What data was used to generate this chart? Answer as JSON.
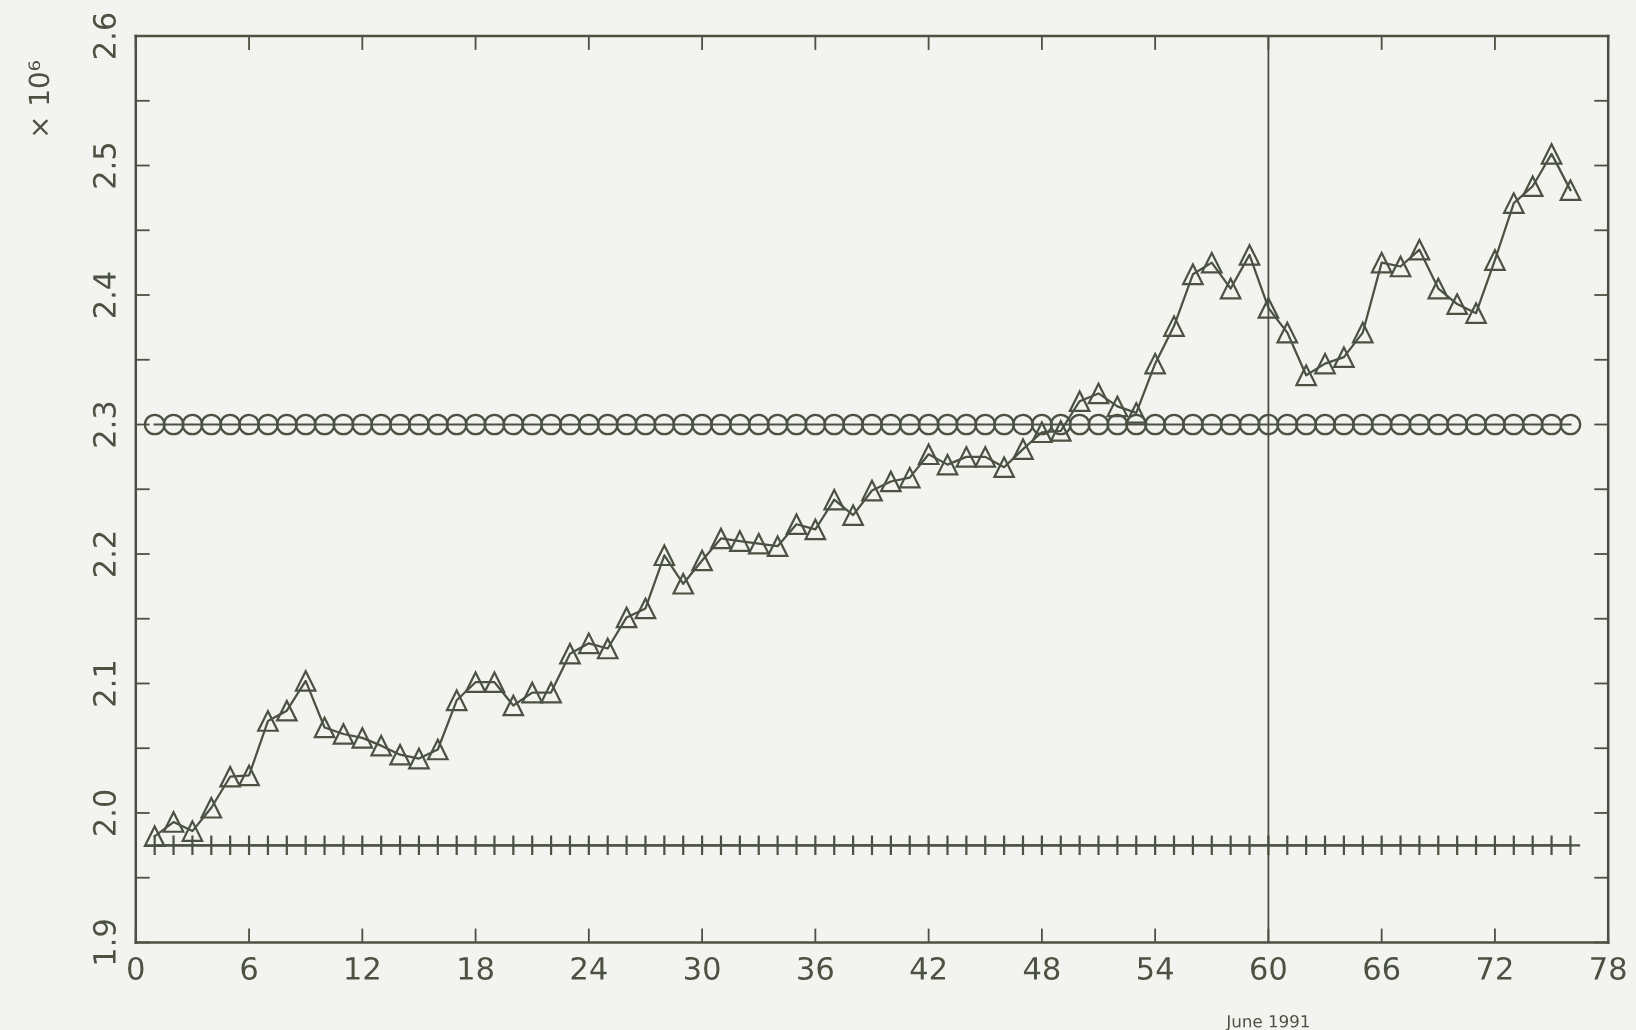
{
  "chart_data": {
    "type": "line",
    "ylabel": "× 10⁶",
    "x": [
      1,
      2,
      3,
      4,
      5,
      6,
      7,
      8,
      9,
      10,
      11,
      12,
      13,
      14,
      15,
      16,
      17,
      18,
      19,
      20,
      21,
      22,
      23,
      24,
      25,
      26,
      27,
      28,
      29,
      30,
      31,
      32,
      33,
      34,
      35,
      36,
      37,
      38,
      39,
      40,
      41,
      42,
      43,
      44,
      45,
      46,
      47,
      48,
      49,
      50,
      51,
      52,
      53,
      54,
      55,
      56,
      57,
      58,
      59,
      60,
      61,
      62,
      63,
      64,
      65,
      66,
      67,
      68,
      69,
      70,
      71,
      72,
      73,
      74,
      75,
      76
    ],
    "series": [
      {
        "color": "#4b5143",
        "marker": "triangle",
        "values": [
          1.982,
          1.993,
          1.986,
          2.004,
          2.028,
          2.029,
          2.071,
          2.079,
          2.102,
          2.066,
          2.061,
          2.058,
          2.052,
          2.045,
          2.042,
          2.049,
          2.087,
          2.101,
          2.101,
          2.083,
          2.093,
          2.093,
          2.123,
          2.131,
          2.127,
          2.151,
          2.158,
          2.199,
          2.177,
          2.195,
          2.212,
          2.21,
          2.208,
          2.206,
          2.223,
          2.219,
          2.242,
          2.23,
          2.249,
          2.256,
          2.259,
          2.277,
          2.269,
          2.275,
          2.275,
          2.267,
          2.281,
          2.294,
          2.295,
          2.318,
          2.324,
          2.314,
          2.309,
          2.347,
          2.376,
          2.416,
          2.425,
          2.405,
          2.431,
          2.39,
          2.371,
          2.338,
          2.347,
          2.352,
          2.371,
          2.425,
          2.422,
          2.435,
          2.405,
          2.393,
          2.386,
          2.427,
          2.471,
          2.484,
          2.509,
          2.481
        ]
      },
      {
        "color": "#4b5143",
        "marker": "circle",
        "values": [
          2.3,
          2.3,
          2.3,
          2.3,
          2.3,
          2.3,
          2.3,
          2.3,
          2.3,
          2.3,
          2.3,
          2.3,
          2.3,
          2.3,
          2.3,
          2.3,
          2.3,
          2.3,
          2.3,
          2.3,
          2.3,
          2.3,
          2.3,
          2.3,
          2.3,
          2.3,
          2.3,
          2.3,
          2.3,
          2.3,
          2.3,
          2.3,
          2.3,
          2.3,
          2.3,
          2.3,
          2.3,
          2.3,
          2.3,
          2.3,
          2.3,
          2.3,
          2.3,
          2.3,
          2.3,
          2.3,
          2.3,
          2.3,
          2.3,
          2.3,
          2.3,
          2.3,
          2.3,
          2.3,
          2.3,
          2.3,
          2.3,
          2.3,
          2.3,
          2.3,
          2.3,
          2.3,
          2.3,
          2.3,
          2.3,
          2.3,
          2.3,
          2.3,
          2.3,
          2.3,
          2.3,
          2.3,
          2.3,
          2.3,
          2.3,
          2.3
        ]
      },
      {
        "color": "#4b5143",
        "marker": "cross",
        "values": [
          1.975,
          1.975,
          1.975,
          1.975,
          1.975,
          1.975,
          1.975,
          1.975,
          1.975,
          1.975,
          1.975,
          1.975,
          1.975,
          1.975,
          1.975,
          1.975,
          1.975,
          1.975,
          1.975,
          1.975,
          1.975,
          1.975,
          1.975,
          1.975,
          1.975,
          1.975,
          1.975,
          1.975,
          1.975,
          1.975,
          1.975,
          1.975,
          1.975,
          1.975,
          1.975,
          1.975,
          1.975,
          1.975,
          1.975,
          1.975,
          1.975,
          1.975,
          1.975,
          1.975,
          1.975,
          1.975,
          1.975,
          1.975,
          1.975,
          1.975,
          1.975,
          1.975,
          1.975,
          1.975,
          1.975,
          1.975,
          1.975,
          1.975,
          1.975,
          1.975,
          1.975,
          1.975,
          1.975,
          1.975,
          1.975,
          1.975,
          1.975,
          1.975,
          1.975,
          1.975,
          1.975,
          1.975,
          1.975,
          1.975,
          1.975,
          1.975
        ]
      }
    ],
    "xlim": [
      0,
      78
    ],
    "xticks": [
      0,
      6,
      12,
      18,
      24,
      30,
      36,
      42,
      48,
      54,
      60,
      66,
      72,
      78
    ],
    "ylim": [
      1.9,
      2.6
    ],
    "yticks": [
      1.9,
      {
        "value": 1.95,
        "label": null
      },
      {
        "value": 2,
        "label": "2.0"
      },
      {
        "value": 2.05,
        "label": null
      },
      2.1,
      {
        "value": 2.15,
        "label": null
      },
      2.2,
      {
        "value": 2.25,
        "label": null
      },
      2.3,
      {
        "value": 2.35,
        "label": null
      },
      2.4,
      {
        "value": 2.45,
        "label": null
      },
      2.5,
      {
        "value": 2.55,
        "label": null
      },
      2.6
    ],
    "ref_lines": [
      {
        "axis": "x",
        "value": 60,
        "label": "June 1991",
        "color": "#4b5143"
      }
    ],
    "line_style": "solid",
    "grid": false,
    "legend": false
  }
}
